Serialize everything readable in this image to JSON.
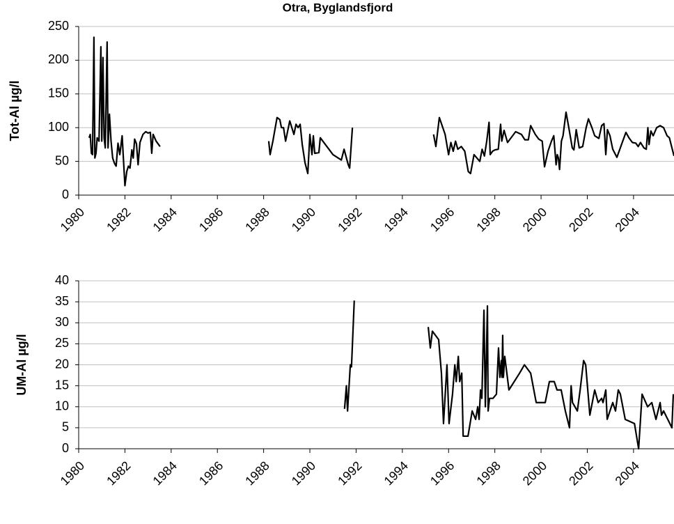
{
  "chart_data": [
    {
      "type": "line",
      "title": "Otra, Byglandsfjord",
      "y_label": "Tot-Al µg/l",
      "color": "#000000",
      "grid": true,
      "xlim": [
        1980,
        2005.75
      ],
      "xticks": [
        1980,
        1982,
        1984,
        1986,
        1988,
        1990,
        1992,
        1994,
        1996,
        1998,
        2000,
        2002,
        2004
      ],
      "ylim": [
        0,
        250
      ],
      "yticks": [
        0,
        50,
        100,
        150,
        200,
        250
      ],
      "x": [
        1980.45,
        1980.5,
        1980.55,
        1980.6,
        1980.66,
        1980.7,
        1980.75,
        1980.8,
        1980.88,
        1980.96,
        1981.0,
        1981.05,
        1981.1,
        1981.15,
        1981.23,
        1981.27,
        1981.33,
        1981.4,
        1981.47,
        1981.55,
        1981.62,
        1981.7,
        1981.78,
        1981.88,
        1982.0,
        1982.08,
        1982.15,
        1982.22,
        1982.3,
        1982.36,
        1982.42,
        1982.5,
        1982.57,
        1982.65,
        1982.78,
        1982.9,
        1983.0,
        1983.1,
        1983.16,
        1983.22,
        1983.35,
        1983.52,
        null,
        1988.22,
        1988.28,
        1988.4,
        1988.58,
        1988.7,
        1988.77,
        1988.86,
        1988.95,
        1989.04,
        1989.13,
        1989.22,
        1989.31,
        1989.4,
        1989.49,
        1989.58,
        1989.67,
        1989.79,
        1989.91,
        1990.0,
        1990.09,
        1990.15,
        1990.21,
        1990.39,
        1990.45,
        1991.0,
        1991.36,
        1991.48,
        1991.66,
        1991.72,
        1991.84,
        null,
        1995.35,
        1995.45,
        1995.6,
        1995.85,
        1996.0,
        1996.1,
        1996.2,
        1996.3,
        1996.4,
        1996.55,
        1996.7,
        1996.85,
        1996.95,
        1997.1,
        1997.35,
        1997.45,
        1997.55,
        1997.65,
        1997.75,
        1997.8,
        1997.9,
        1998.0,
        1998.15,
        1998.25,
        1998.3,
        1998.4,
        1998.55,
        1998.9,
        1999.15,
        1999.3,
        1999.45,
        1999.55,
        1999.75,
        1999.9,
        2000.05,
        2000.15,
        2000.3,
        2000.45,
        2000.55,
        2000.65,
        2000.7,
        2000.75,
        2000.8,
        2000.88,
        2000.95,
        2001.08,
        2001.2,
        2001.35,
        2001.42,
        2001.52,
        2001.65,
        2001.8,
        2001.95,
        2002.05,
        2002.2,
        2002.32,
        2002.5,
        2002.62,
        2002.72,
        2002.8,
        2002.87,
        2002.98,
        2003.1,
        2003.28,
        2003.48,
        2003.67,
        2003.8,
        2003.95,
        2004.1,
        2004.2,
        2004.3,
        2004.45,
        2004.55,
        2004.62,
        2004.67,
        2004.75,
        2004.85,
        2005.0,
        2005.15,
        2005.3,
        2005.45,
        2005.55,
        2005.75
      ],
      "values": [
        85,
        90,
        62,
        60,
        234,
        55,
        62,
        85,
        80,
        220,
        80,
        204,
        85,
        70,
        227,
        70,
        120,
        80,
        55,
        47,
        43,
        77,
        60,
        88,
        14,
        35,
        43,
        40,
        67,
        55,
        83,
        76,
        45,
        78,
        90,
        94,
        92,
        93,
        62,
        90,
        80,
        72,
        null,
        80,
        60,
        80,
        115,
        112,
        100,
        100,
        80,
        95,
        110,
        100,
        90,
        105,
        100,
        105,
        75,
        48,
        32,
        90,
        60,
        88,
        62,
        63,
        85,
        60,
        52,
        68,
        45,
        40,
        100,
        null,
        90,
        72,
        115,
        90,
        60,
        78,
        65,
        80,
        68,
        72,
        65,
        35,
        32,
        60,
        50,
        68,
        58,
        80,
        108,
        60,
        65,
        67,
        68,
        105,
        80,
        96,
        78,
        94,
        90,
        82,
        82,
        103,
        90,
        83,
        80,
        42,
        65,
        80,
        88,
        45,
        60,
        55,
        38,
        80,
        88,
        123,
        100,
        70,
        67,
        97,
        70,
        72,
        100,
        113,
        100,
        88,
        84,
        103,
        106,
        60,
        97,
        88,
        68,
        56,
        75,
        93,
        85,
        78,
        77,
        72,
        78,
        70,
        68,
        100,
        75,
        95,
        88,
        100,
        103,
        100,
        88,
        85,
        58
      ]
    },
    {
      "type": "line",
      "y_label": "UM-Al µg/l",
      "color": "#000000",
      "grid": true,
      "xlim": [
        1980,
        2005.75
      ],
      "xticks": [
        1980,
        1982,
        1984,
        1986,
        1988,
        1990,
        1992,
        1994,
        1996,
        1998,
        2000,
        2002,
        2004
      ],
      "ylim": [
        0,
        40
      ],
      "yticks": [
        0,
        5,
        10,
        15,
        20,
        25,
        30,
        35,
        40
      ],
      "x": [
        1991.5,
        1991.58,
        1991.63,
        1991.75,
        1991.8,
        1991.92,
        null,
        1995.12,
        1995.21,
        1995.3,
        1995.57,
        1995.69,
        1995.78,
        1995.93,
        1996.02,
        1996.17,
        1996.27,
        1996.33,
        1996.42,
        1996.48,
        1996.57,
        1996.63,
        1996.84,
        1997.02,
        1997.17,
        1997.26,
        1997.32,
        1997.38,
        1997.44,
        1997.53,
        1997.59,
        1997.68,
        1997.71,
        1997.77,
        1997.92,
        1998.07,
        1998.16,
        1998.22,
        1998.28,
        1998.31,
        1998.34,
        1998.37,
        1998.43,
        1998.61,
        1999.07,
        1999.28,
        1999.55,
        1999.79,
        2000.18,
        2000.36,
        2000.57,
        2000.69,
        2000.87,
        2001.05,
        2001.23,
        2001.3,
        2001.36,
        2001.57,
        2001.69,
        2001.84,
        2001.93,
        2002.11,
        2002.32,
        2002.47,
        2002.62,
        2002.68,
        2002.8,
        2002.86,
        2003.1,
        2003.22,
        2003.34,
        2003.43,
        2003.64,
        2004.04,
        2004.22,
        2004.37,
        2004.61,
        2004.79,
        2004.97,
        2005.15,
        2005.21,
        2005.3,
        2005.66,
        2005.72
      ],
      "values": [
        9.5,
        15,
        9,
        20,
        19.5,
        35.3,
        null,
        29,
        24,
        28,
        26,
        18,
        6,
        20,
        6,
        13,
        20,
        16,
        22,
        16,
        18,
        3,
        3,
        9,
        7,
        10,
        7,
        14,
        12,
        33,
        10,
        34,
        9,
        12,
        12,
        13,
        24,
        17,
        21,
        17,
        27,
        17,
        22,
        14,
        18,
        20,
        18,
        11,
        11,
        16,
        16,
        14,
        14,
        9,
        5,
        15,
        11,
        9,
        14,
        21,
        20,
        8,
        14,
        11,
        12,
        11,
        14,
        7,
        11,
        9,
        14,
        13,
        7,
        6,
        0,
        13,
        10,
        11,
        7,
        11,
        8,
        9,
        5,
        13
      ]
    }
  ]
}
